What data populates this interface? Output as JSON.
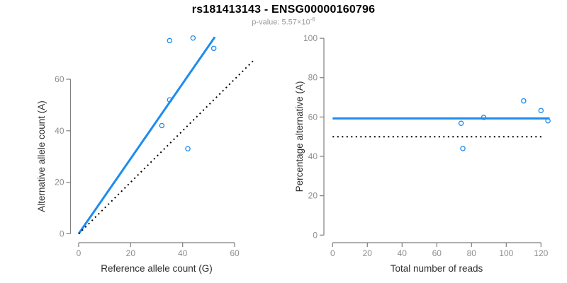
{
  "header": {
    "title": "rs181413143 - ENSG00000160796",
    "pvalue_prefix": "p-value: 5.57×10",
    "pvalue_exponent": "-6"
  },
  "colors": {
    "accent_blue": "#1E8BF0",
    "reference_black": "#000000",
    "axis_line": "#7f7f7f",
    "tick_label": "#8e8e8e",
    "axis_title": "#2e2e2e",
    "subtitle_gray": "#9b9b9b"
  },
  "chart_data": [
    {
      "type": "scatter",
      "panel": "left",
      "xlabel": "Reference allele count (G)",
      "ylabel": "Alternative allele count (A)",
      "xlim": [
        0,
        60
      ],
      "ylim": [
        0,
        60
      ],
      "xticks": [
        0,
        20,
        40,
        60
      ],
      "yticks": [
        0,
        20,
        40,
        60
      ],
      "grid": false,
      "points": [
        {
          "x": 32,
          "y": 42
        },
        {
          "x": 42,
          "y": 33
        },
        {
          "x": 35,
          "y": 52
        },
        {
          "x": 35,
          "y": 75
        },
        {
          "x": 44,
          "y": 76
        },
        {
          "x": 52,
          "y": 72
        }
      ],
      "lines": [
        {
          "name": "fitted-line",
          "from": [
            0,
            0
          ],
          "to": [
            52.4,
            76.4
          ],
          "color": "#1E8BF0",
          "style": "solid"
        },
        {
          "name": "identity-line",
          "from": [
            0,
            0
          ],
          "to": [
            67.5,
            67.5
          ],
          "color": "#000000",
          "style": "dotted"
        }
      ]
    },
    {
      "type": "scatter",
      "panel": "right",
      "xlabel": "Total number of reads",
      "ylabel": "Percentage alternative (A)",
      "xlim": [
        0,
        120
      ],
      "ylim": [
        0,
        100
      ],
      "xticks": [
        0,
        20,
        40,
        60,
        80,
        100,
        120
      ],
      "yticks": [
        0,
        20,
        40,
        60,
        80,
        100
      ],
      "grid": false,
      "points": [
        {
          "x": 74,
          "y": 56.8
        },
        {
          "x": 75,
          "y": 44
        },
        {
          "x": 87,
          "y": 59.8
        },
        {
          "x": 110,
          "y": 68.2
        },
        {
          "x": 120,
          "y": 63.3
        },
        {
          "x": 124,
          "y": 58.1
        }
      ],
      "lines": [
        {
          "name": "mean-percentage-line",
          "from": [
            0,
            59.3
          ],
          "to": [
            125,
            59.3
          ],
          "color": "#1E8BF0",
          "style": "solid"
        },
        {
          "name": "fifty-percent-line",
          "from": [
            0,
            50
          ],
          "to": [
            122,
            50
          ],
          "color": "#000000",
          "style": "dotted"
        }
      ]
    }
  ]
}
